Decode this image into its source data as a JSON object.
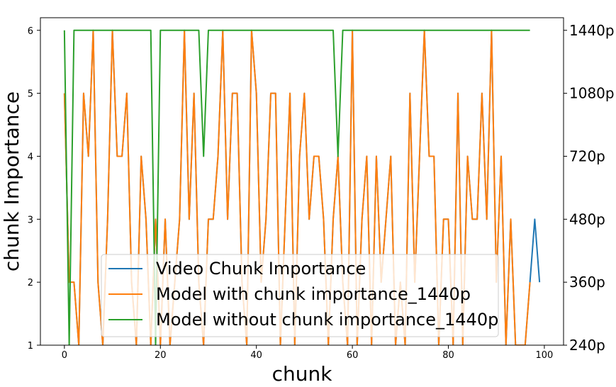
{
  "chart_data": {
    "type": "line",
    "title": "",
    "xlabel": "chunk",
    "ylabel": "chunk Importance",
    "xlim": [
      -5,
      104
    ],
    "ylim": [
      1,
      6.2
    ],
    "x_ticks": [
      0,
      20,
      40,
      60,
      80,
      100
    ],
    "y_ticks": [
      1,
      2,
      3,
      4,
      5,
      6
    ],
    "y2_ticks": [
      {
        "value": 1,
        "label": "240p"
      },
      {
        "value": 2,
        "label": "360p"
      },
      {
        "value": 3,
        "label": "480p"
      },
      {
        "value": 4,
        "label": "720p"
      },
      {
        "value": 5,
        "label": "1080p"
      },
      {
        "value": 6,
        "label": "1440p"
      }
    ],
    "legend_position": "lower-center",
    "grid": false,
    "series": [
      {
        "name": "Video Chunk Importance",
        "color": "#1f77b4",
        "x": [
          0,
          1,
          2,
          3,
          4,
          5,
          6,
          7,
          8,
          9,
          10,
          11,
          12,
          13,
          14,
          15,
          16,
          17,
          18,
          19,
          20,
          21,
          22,
          23,
          24,
          25,
          26,
          27,
          28,
          29,
          30,
          31,
          32,
          33,
          34,
          35,
          36,
          37,
          38,
          39,
          40,
          41,
          42,
          43,
          44,
          45,
          46,
          47,
          48,
          49,
          50,
          51,
          52,
          53,
          54,
          55,
          56,
          57,
          58,
          59,
          60,
          61,
          62,
          63,
          64,
          65,
          66,
          67,
          68,
          69,
          70,
          71,
          72,
          73,
          74,
          75,
          76,
          77,
          78,
          79,
          80,
          81,
          82,
          83,
          84,
          85,
          86,
          87,
          88,
          89,
          90,
          91,
          92,
          93,
          94,
          95,
          96,
          97,
          98,
          99
        ],
        "values": [
          5,
          2,
          2,
          1,
          5,
          4,
          6,
          2,
          1,
          3,
          6,
          4,
          4,
          5,
          2,
          1,
          4,
          3,
          1,
          3,
          1,
          3,
          1,
          2,
          3,
          6,
          3,
          5,
          2,
          1,
          3,
          3,
          4,
          6,
          3,
          5,
          5,
          2,
          1,
          6,
          5,
          2,
          3,
          5,
          5,
          1,
          3,
          5,
          1,
          4,
          5,
          3,
          4,
          4,
          3,
          1,
          3,
          4,
          2,
          1,
          6,
          1,
          3,
          4,
          1,
          4,
          2,
          3,
          4,
          1,
          2,
          1,
          5,
          2,
          4,
          6,
          4,
          4,
          1,
          3,
          3,
          1,
          5,
          1,
          4,
          3,
          3,
          5,
          3,
          6,
          2,
          4,
          1,
          3,
          1,
          1,
          1,
          2,
          3,
          2
        ]
      },
      {
        "name": "Model with chunk importance_1440p",
        "color": "#ff7f0e",
        "x": [
          0,
          1,
          2,
          3,
          4,
          5,
          6,
          7,
          8,
          9,
          10,
          11,
          12,
          13,
          14,
          15,
          16,
          17,
          18,
          19,
          20,
          21,
          22,
          23,
          24,
          25,
          26,
          27,
          28,
          29,
          30,
          31,
          32,
          33,
          34,
          35,
          36,
          37,
          38,
          39,
          40,
          41,
          42,
          43,
          44,
          45,
          46,
          47,
          48,
          49,
          50,
          51,
          52,
          53,
          54,
          55,
          56,
          57,
          58,
          59,
          60,
          61,
          62,
          63,
          64,
          65,
          66,
          67,
          68,
          69,
          70,
          71,
          72,
          73,
          74,
          75,
          76,
          77,
          78,
          79,
          80,
          81,
          82,
          83,
          84,
          85,
          86,
          87,
          88,
          89,
          90,
          91,
          92,
          93,
          94,
          95,
          96,
          97
        ],
        "values": [
          5,
          2,
          2,
          1,
          5,
          4,
          6,
          2,
          1,
          3,
          6,
          4,
          4,
          5,
          2,
          1,
          4,
          3,
          1,
          3,
          1,
          3,
          1,
          2,
          3,
          6,
          3,
          5,
          2,
          1,
          3,
          3,
          4,
          6,
          3,
          5,
          5,
          2,
          1,
          6,
          5,
          2,
          3,
          5,
          5,
          1,
          3,
          5,
          1,
          4,
          5,
          3,
          4,
          4,
          3,
          1,
          3,
          4,
          2,
          1,
          6,
          1,
          3,
          4,
          1,
          4,
          2,
          3,
          4,
          1,
          2,
          1,
          5,
          2,
          4,
          6,
          4,
          4,
          1,
          3,
          3,
          1,
          5,
          1,
          4,
          3,
          3,
          5,
          3,
          6,
          2,
          4,
          1,
          3,
          1,
          1,
          1,
          2
        ]
      },
      {
        "name": "Model without chunk importance_1440p",
        "color": "#2ca02c",
        "x": [
          0,
          1,
          2,
          3,
          4,
          5,
          6,
          7,
          8,
          9,
          10,
          11,
          12,
          13,
          14,
          15,
          16,
          17,
          18,
          19,
          20,
          21,
          22,
          23,
          24,
          25,
          26,
          27,
          28,
          29,
          30,
          31,
          32,
          33,
          34,
          35,
          36,
          37,
          38,
          39,
          40,
          41,
          42,
          43,
          44,
          45,
          46,
          47,
          48,
          49,
          50,
          51,
          52,
          53,
          54,
          55,
          56,
          57,
          58,
          59,
          60,
          61,
          62,
          63,
          64,
          65,
          66,
          67,
          68,
          69,
          70,
          71,
          72,
          73,
          74,
          75,
          76,
          77,
          78,
          79,
          80,
          81,
          82,
          83,
          84,
          85,
          86,
          87,
          88,
          89,
          90,
          91,
          92,
          93,
          94,
          95,
          96,
          97
        ],
        "values": [
          6,
          1,
          6,
          6,
          6,
          6,
          6,
          6,
          6,
          6,
          6,
          6,
          6,
          6,
          6,
          6,
          6,
          6,
          6,
          1,
          6,
          6,
          6,
          6,
          6,
          6,
          6,
          6,
          6,
          4,
          6,
          6,
          6,
          6,
          6,
          6,
          6,
          6,
          6,
          6,
          6,
          6,
          6,
          6,
          6,
          6,
          6,
          6,
          6,
          6,
          6,
          6,
          6,
          6,
          6,
          6,
          6,
          4,
          6,
          6,
          6,
          6,
          6,
          6,
          6,
          6,
          6,
          6,
          6,
          6,
          6,
          6,
          6,
          6,
          6,
          6,
          6,
          6,
          6,
          6,
          6,
          6,
          6,
          6,
          6,
          6,
          6,
          6,
          6,
          6,
          6,
          6,
          6,
          6,
          6,
          6,
          6,
          6
        ]
      }
    ]
  }
}
